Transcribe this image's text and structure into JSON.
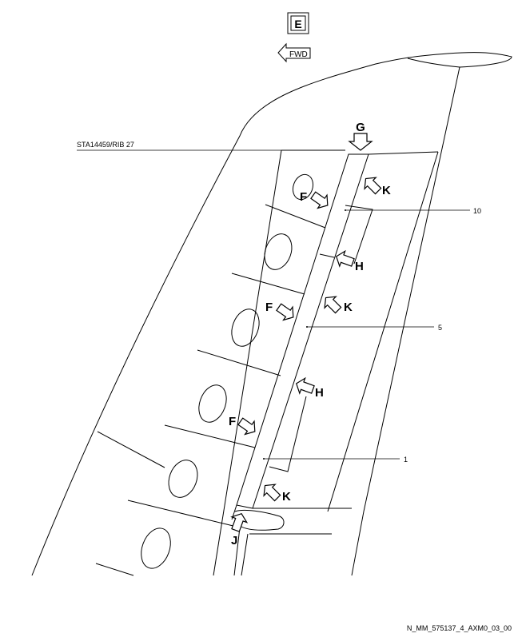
{
  "view_label": "E",
  "fwd_label": "FWD",
  "station_label": "STA14459/RIB 27",
  "view_letters": {
    "g": "G",
    "k1": "K",
    "k2": "K",
    "k3": "K",
    "f1": "F",
    "f2": "F",
    "f3": "F",
    "h1": "H",
    "h2": "H",
    "j": "J"
  },
  "callouts": {
    "c10": "10",
    "c5": "5",
    "c1": "1"
  },
  "figure_id": "N_MM_575137_4_AXM0_03_00"
}
